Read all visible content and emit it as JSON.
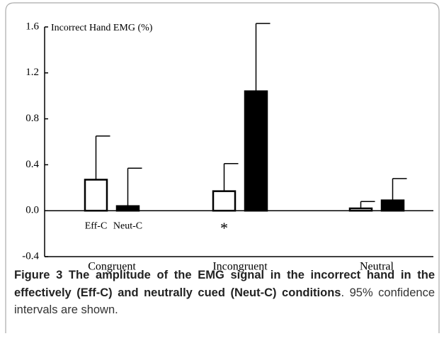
{
  "chart_data": {
    "type": "bar",
    "ylabel": "Incorrect Hand EMG (%)",
    "categories": [
      "Congruent",
      "Incongruent",
      "Neutral"
    ],
    "series": [
      {
        "name": "Eff-C",
        "color": "#ffffff",
        "values": [
          0.27,
          0.17,
          0.02
        ],
        "errors": [
          0.38,
          0.24,
          0.06
        ]
      },
      {
        "name": "Neut-C",
        "color": "#000000",
        "values": [
          0.04,
          1.04,
          0.09
        ],
        "errors": [
          0.33,
          0.59,
          0.19
        ]
      }
    ],
    "annotations": [
      "*"
    ],
    "ylim": [
      -0.4,
      1.6
    ],
    "yticks": [
      -0.4,
      {
        "value": 0,
        "label": "0.0"
      },
      0.4,
      0.8,
      1.2,
      1.6
    ]
  },
  "caption": {
    "bold": "Figure 3 The amplitude of the EMG signal in the incorrect hand in the effectively (Eff-C) and neutrally cued (Neut-C) conditions",
    "text": ". 95% confidence intervals are shown."
  }
}
